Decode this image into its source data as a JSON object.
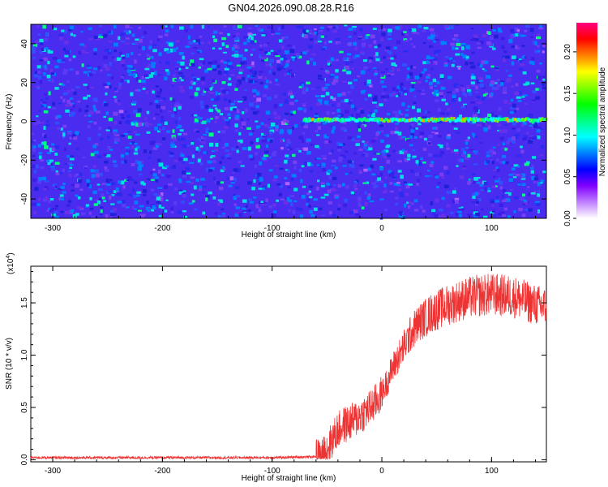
{
  "title": "GN04.2026.090.08.28.R16",
  "chart_data": [
    {
      "type": "heatmap",
      "xlabel": "Height of straight line (km)",
      "ylabel": "Frequency (Hz)",
      "xlim": [
        -320,
        150
      ],
      "ylim": [
        -50,
        50
      ],
      "xticks": [
        -300,
        -200,
        -100,
        0,
        100
      ],
      "yticks": [
        -40,
        -20,
        0,
        20,
        40
      ],
      "colorbar": {
        "label": "Normalized spectral amplitude",
        "range": [
          0.0,
          0.235
        ],
        "ticks": [
          "0.00",
          "0.05",
          "0.10",
          "0.15",
          "0.20"
        ]
      },
      "signal_line": {
        "x_start": -72,
        "x_end": 150,
        "frequency": 1
      },
      "colormap": [
        "#ffffff",
        "#c080ff",
        "#8000ff",
        "#0000ff",
        "#0080ff",
        "#00ffff",
        "#00ff80",
        "#00ff00",
        "#80ff00",
        "#ffff00",
        "#ff8000",
        "#ff0000",
        "#ff0080"
      ]
    },
    {
      "type": "line",
      "xlabel": "Height of straight line (km)",
      "ylabel": "SNR (10 * v/v)",
      "y_multiplier": "(x10",
      "y_multiplier_exp": "4",
      "y_multiplier_close": ")",
      "xlim": [
        -320,
        150
      ],
      "ylim": [
        -0.02,
        1.85
      ],
      "xticks": [
        -300,
        -200,
        -100,
        0,
        100
      ],
      "yticks": [
        "0.0",
        "0.5",
        "1.0",
        "1.5"
      ],
      "color": "#ee3333",
      "series": [
        {
          "x": [
            -320,
            -100,
            -55,
            -50,
            -45,
            -40,
            -35,
            -30,
            -25,
            -20,
            -15,
            -10,
            -5,
            0,
            5,
            10,
            15,
            20,
            25,
            30,
            35,
            40,
            45,
            50,
            60,
            70,
            80,
            90,
            100,
            110,
            120,
            130,
            140,
            150
          ],
          "y": [
            0.02,
            0.02,
            0.03,
            0.1,
            0.2,
            0.28,
            0.33,
            0.35,
            0.38,
            0.42,
            0.46,
            0.5,
            0.56,
            0.63,
            0.75,
            0.88,
            0.98,
            1.08,
            1.18,
            1.26,
            1.32,
            1.36,
            1.4,
            1.43,
            1.48,
            1.52,
            1.55,
            1.57,
            1.58,
            1.57,
            1.56,
            1.52,
            1.48,
            1.46
          ]
        }
      ]
    }
  ]
}
